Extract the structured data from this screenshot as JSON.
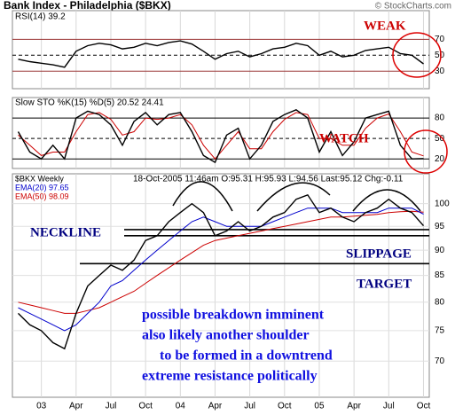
{
  "header": {
    "title": "Bank Index - Philadelphia ($BKX)",
    "source": "© StockCharts.com"
  },
  "annotations": {
    "weak": "WEAK",
    "watch": "WATCH",
    "neckline": "NECKLINE",
    "slippage": "SLIPPAGE",
    "target": "TARGET",
    "note": [
      "possible breakdown imminent",
      "also likely another shoulder",
      "to be formed in a downtrend",
      "extreme resistance politically"
    ]
  },
  "chart_data": [
    {
      "type": "line",
      "title": "RSI(14) 39.2",
      "ylim": [
        8,
        106
      ],
      "yticks": [
        30,
        50,
        70
      ],
      "series": [
        {
          "color": "#000000",
          "values": [
            45,
            42,
            40,
            38,
            35,
            55,
            62,
            65,
            63,
            58,
            60,
            65,
            62,
            66,
            68,
            64,
            55,
            45,
            52,
            55,
            48,
            52,
            58,
            60,
            65,
            62,
            50,
            55,
            48,
            50,
            56,
            58,
            60,
            52,
            50,
            39.2
          ]
        }
      ]
    },
    {
      "type": "line",
      "title": "Slow STO %K(15) %D(5) 20.52 24.41",
      "ylim": [
        6,
        110
      ],
      "yticks": [
        20,
        50,
        80
      ],
      "series": [
        {
          "color": "#000000",
          "values": [
            60,
            30,
            20,
            40,
            20,
            80,
            90,
            85,
            70,
            40,
            75,
            88,
            70,
            85,
            88,
            60,
            25,
            15,
            55,
            65,
            20,
            40,
            75,
            85,
            92,
            80,
            30,
            60,
            25,
            45,
            80,
            85,
            90,
            40,
            20,
            20.52
          ]
        },
        {
          "color": "#cc0000",
          "values": [
            55,
            40,
            25,
            30,
            30,
            60,
            85,
            88,
            78,
            55,
            60,
            80,
            78,
            80,
            85,
            70,
            40,
            20,
            40,
            60,
            35,
            35,
            60,
            78,
            88,
            85,
            50,
            50,
            40,
            40,
            65,
            80,
            86,
            60,
            30,
            24.41
          ]
        }
      ]
    },
    {
      "type": "line",
      "log": true,
      "subtitle": "18-Oct-2005 11:46am  O:95.31 H:95.93 L:94.56 Last:95.12 Chg:-0.11",
      "ylim": [
        64.5,
        107
      ],
      "yticks": [
        70,
        75,
        80,
        85,
        90,
        95,
        100
      ],
      "levels": [
        94.3,
        93.0,
        87.3
      ],
      "categories": [
        null,
        null,
        "03",
        null,
        null,
        "Apr",
        null,
        null,
        "Jul",
        null,
        null,
        "Oct",
        null,
        null,
        "04",
        null,
        null,
        "Apr",
        null,
        null,
        "Jul",
        null,
        null,
        "Oct",
        null,
        null,
        "05",
        null,
        null,
        "Apr",
        null,
        null,
        "Jul",
        null,
        null,
        "Oct"
      ],
      "series": [
        {
          "name": "$BKX Weekly",
          "color": "#000000",
          "values": [
            78,
            76,
            75,
            73,
            72,
            78,
            83,
            85,
            87,
            86,
            88,
            92,
            93,
            96,
            98,
            100,
            98,
            93,
            94,
            96,
            94,
            95,
            97,
            98,
            101,
            102,
            98,
            99,
            97,
            96,
            98,
            99,
            101,
            99,
            98,
            95.12
          ]
        },
        {
          "name": "EMA(20) 97.65",
          "color": "#0000cc",
          "values": [
            79,
            78,
            77,
            76,
            75,
            76,
            78,
            80,
            83,
            84,
            86,
            88,
            90,
            92,
            94,
            96,
            97,
            96,
            95,
            95,
            95,
            95,
            96,
            97,
            98,
            99,
            99,
            99,
            98,
            98,
            98,
            98,
            99,
            99,
            99,
            97.65
          ]
        },
        {
          "name": "EMA(50) 98.09",
          "color": "#cc0000",
          "values": [
            80,
            79.5,
            79,
            78.5,
            78,
            78,
            78.5,
            79,
            80,
            81,
            82,
            83.5,
            85,
            86.5,
            88,
            89.5,
            91,
            92,
            92.5,
            93,
            93.5,
            94,
            94.5,
            95,
            95.5,
            96,
            96.5,
            97,
            97,
            97.2,
            97.4,
            97.6,
            98,
            98.2,
            98.3,
            98.09
          ]
        }
      ]
    }
  ]
}
